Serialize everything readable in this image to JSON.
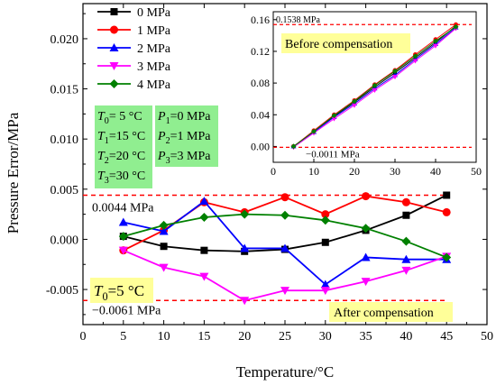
{
  "chart_data": [
    {
      "type": "line",
      "xlabel": "Temperature/°C",
      "ylabel": "Pressure Error/MPa",
      "xlim": [
        0,
        50
      ],
      "ylim": [
        -0.0085,
        0.0235
      ],
      "xticks": [
        "0",
        "5",
        "10",
        "15",
        "20",
        "25",
        "30",
        "35",
        "40",
        "45",
        "50"
      ],
      "yticks": [
        "-0.005",
        "0.000",
        "0.005",
        "0.010",
        "0.015",
        "0.020"
      ],
      "grid": false,
      "legend_position": "top-left",
      "x": [
        5,
        10,
        15,
        20,
        25,
        30,
        35,
        40,
        45
      ],
      "series": [
        {
          "name": "0 MPa",
          "color": "#000000",
          "marker": "square",
          "values": [
            0.0003,
            -0.0007,
            -0.0011,
            -0.0012,
            -0.001,
            -0.0003,
            0.0009,
            0.0024,
            0.0044
          ]
        },
        {
          "name": "1 MPa",
          "color": "#ff0000",
          "marker": "circle",
          "values": [
            -0.0011,
            0.0009,
            0.0037,
            0.0027,
            0.0042,
            0.0025,
            0.0043,
            0.0037,
            0.0027
          ]
        },
        {
          "name": "2 MPa",
          "color": "#0000ff",
          "marker": "triangle-up",
          "values": [
            0.0017,
            0.0008,
            0.0038,
            -0.0009,
            -0.0009,
            -0.0045,
            -0.0018,
            -0.002,
            -0.002
          ]
        },
        {
          "name": "3 MPa",
          "color": "#ff00ff",
          "marker": "triangle-down",
          "values": [
            -0.0011,
            -0.0028,
            -0.0037,
            -0.0061,
            -0.0051,
            -0.0051,
            -0.0042,
            -0.0031,
            -0.0017
          ]
        },
        {
          "name": "4 MPa",
          "color": "#008000",
          "marker": "diamond",
          "values": [
            0.0003,
            0.0014,
            0.0022,
            0.0025,
            0.0024,
            0.0019,
            0.0011,
            -0.0002,
            -0.0018
          ]
        }
      ],
      "reference_lines": [
        {
          "value": 0.0044,
          "label": "0.0044 MPa",
          "color": "#ff0000"
        },
        {
          "value": -0.0061,
          "label": "−0.0061 MPa",
          "color": "#ff0000"
        }
      ],
      "annotations": {
        "temperature_box": [
          {
            "sym": "T",
            "sub": "0",
            "rest": "= 5 °C"
          },
          {
            "sym": "T",
            "sub": "1",
            "rest": "=15 °C"
          },
          {
            "sym": "T",
            "sub": "2",
            "rest": "=20 °C"
          },
          {
            "sym": "T",
            "sub": "3",
            "rest": "=30 °C"
          }
        ],
        "pressure_box": [
          {
            "sym": "P",
            "sub": "1",
            "rest": "=0 MPa"
          },
          {
            "sym": "P",
            "sub": "2",
            "rest": "=1 MPa"
          },
          {
            "sym": "P",
            "sub": "3",
            "rest": "=3 MPa"
          }
        ],
        "t0_box": {
          "sym": "T",
          "sub": "0",
          "rest": "=5 °C"
        },
        "after_label": "After compensation",
        "box_color": "#90ee90",
        "label_color": "#ffff99"
      }
    },
    {
      "type": "line",
      "title": "",
      "xlim": [
        0,
        50
      ],
      "ylim": [
        -0.02,
        0.17
      ],
      "xticks": [
        "0",
        "10",
        "20",
        "30",
        "40",
        "50"
      ],
      "yticks": [
        "0.00",
        "0.04",
        "0.08",
        "0.12",
        "0.16"
      ],
      "x": [
        5,
        10,
        15,
        20,
        25,
        30,
        35,
        40,
        45
      ],
      "series": [
        {
          "color": "#000000",
          "values": [
            0.0,
            0.019,
            0.038,
            0.056,
            0.075,
            0.093,
            0.112,
            0.131,
            0.152
          ]
        },
        {
          "color": "#ff0000",
          "values": [
            0.0,
            0.02,
            0.04,
            0.058,
            0.078,
            0.096,
            0.116,
            0.135,
            0.1538
          ]
        },
        {
          "color": "#0000ff",
          "values": [
            0.0,
            0.018,
            0.037,
            0.054,
            0.073,
            0.09,
            0.11,
            0.129,
            0.15
          ]
        },
        {
          "color": "#ff00ff",
          "values": [
            -0.0011,
            0.017,
            0.035,
            0.052,
            0.071,
            0.088,
            0.108,
            0.127,
            0.149
          ]
        },
        {
          "color": "#008000",
          "values": [
            0.0,
            0.019,
            0.039,
            0.057,
            0.077,
            0.095,
            0.114,
            0.133,
            0.151
          ]
        }
      ],
      "reference_lines": [
        {
          "value": 0.1538,
          "label": "0.1538 MPa",
          "color": "#ff0000"
        },
        {
          "value": -0.0011,
          "label": "−0.0011 MPa",
          "color": "#ff0000"
        }
      ],
      "annotation": "Before compensation"
    }
  ]
}
